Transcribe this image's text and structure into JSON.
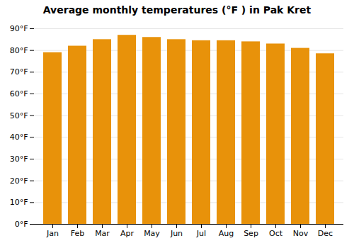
{
  "chart_data": {
    "type": "bar",
    "title": "Average monthly temperatures (°F ) in Pak Kret",
    "categories": [
      "Jan",
      "Feb",
      "Mar",
      "Apr",
      "May",
      "Jun",
      "Jul",
      "Aug",
      "Sep",
      "Oct",
      "Nov",
      "Dec"
    ],
    "values": [
      79,
      82,
      85,
      87,
      86,
      85,
      84.5,
      84.5,
      84,
      83,
      81,
      78.5
    ],
    "color": "#E8920A",
    "ylim": [
      0,
      90
    ],
    "yticks": [
      {
        "value": 0,
        "label": "0°F"
      },
      {
        "value": 10,
        "label": "10°F"
      },
      {
        "value": 20,
        "label": "20°F"
      },
      {
        "value": 30,
        "label": "30°F"
      },
      {
        "value": 40,
        "label": "40°F"
      },
      {
        "value": 50,
        "label": "50°F"
      },
      {
        "value": 60,
        "label": "60°F"
      },
      {
        "value": 70,
        "label": "70°F"
      },
      {
        "value": 80,
        "label": "80°F"
      },
      {
        "value": 90,
        "label": "90°F"
      }
    ],
    "grid": true
  }
}
